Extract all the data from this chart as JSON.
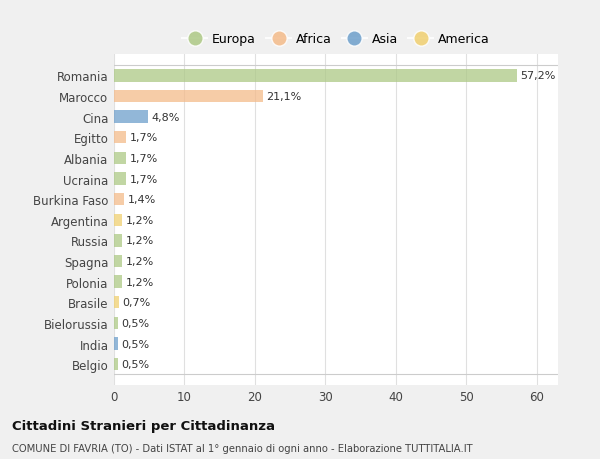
{
  "countries": [
    "Romania",
    "Marocco",
    "Cina",
    "Egitto",
    "Albania",
    "Ucraina",
    "Burkina Faso",
    "Argentina",
    "Russia",
    "Spagna",
    "Polonia",
    "Brasile",
    "Bielorussia",
    "India",
    "Belgio"
  ],
  "values": [
    57.2,
    21.1,
    4.8,
    1.7,
    1.7,
    1.7,
    1.4,
    1.2,
    1.2,
    1.2,
    1.2,
    0.7,
    0.5,
    0.5,
    0.5
  ],
  "labels": [
    "57,2%",
    "21,1%",
    "4,8%",
    "1,7%",
    "1,7%",
    "1,7%",
    "1,4%",
    "1,2%",
    "1,2%",
    "1,2%",
    "1,2%",
    "0,7%",
    "0,5%",
    "0,5%",
    "0,5%"
  ],
  "colors": [
    "#adc985",
    "#f4bb8a",
    "#6e9fcb",
    "#f4bb8a",
    "#adc985",
    "#adc985",
    "#f4bb8a",
    "#f0d070",
    "#adc985",
    "#adc985",
    "#adc985",
    "#f0d070",
    "#adc985",
    "#6e9fcb",
    "#adc985"
  ],
  "legend_labels": [
    "Europa",
    "Africa",
    "Asia",
    "America"
  ],
  "legend_colors": [
    "#adc985",
    "#f4bb8a",
    "#6e9fcb",
    "#f0d070"
  ],
  "title": "Cittadini Stranieri per Cittadinanza",
  "subtitle": "COMUNE DI FAVRIA (TO) - Dati ISTAT al 1° gennaio di ogni anno - Elaborazione TUTTITALIA.IT",
  "xlim": [
    0,
    63
  ],
  "xticks": [
    0,
    10,
    20,
    30,
    40,
    50,
    60
  ],
  "fig_bg_color": "#f0f0f0",
  "plot_bg_color": "#ffffff",
  "grid_color": "#e0e0e0"
}
